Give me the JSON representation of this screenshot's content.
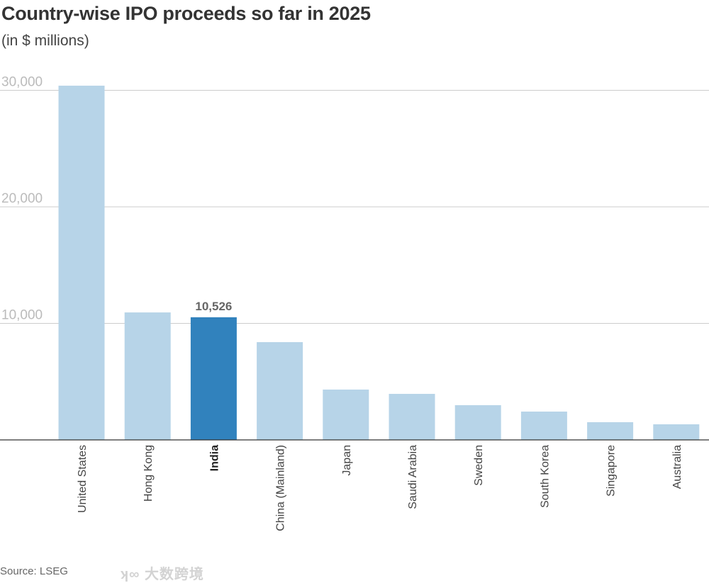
{
  "chart_data": {
    "type": "bar",
    "title": "Country-wise IPO proceeds so far in 2025",
    "subtitle": "(in $ millions)",
    "xlabel": "",
    "ylabel": "",
    "ylim": [
      0,
      31000
    ],
    "yticks": [
      10000,
      20000,
      30000
    ],
    "ytick_labels": [
      "10,000",
      "20,000",
      "30,000"
    ],
    "grid": true,
    "categories": [
      "United States",
      "Hong Kong",
      "India",
      "China (Mainland)",
      "Japan",
      "Saudi Arabia",
      "Sweden",
      "South Korea",
      "Singapore",
      "Australia"
    ],
    "values": [
      30400,
      10940,
      10526,
      8390,
      4320,
      3950,
      2980,
      2430,
      1520,
      1340
    ],
    "highlight": "India",
    "highlight_label": "10,526",
    "colors": {
      "bar": "#b7d4e8",
      "highlight": "#3182bd",
      "grid": "#cccccc",
      "axis": "#333333"
    }
  },
  "source": "Source: LSEG",
  "watermark": "大数跨境"
}
